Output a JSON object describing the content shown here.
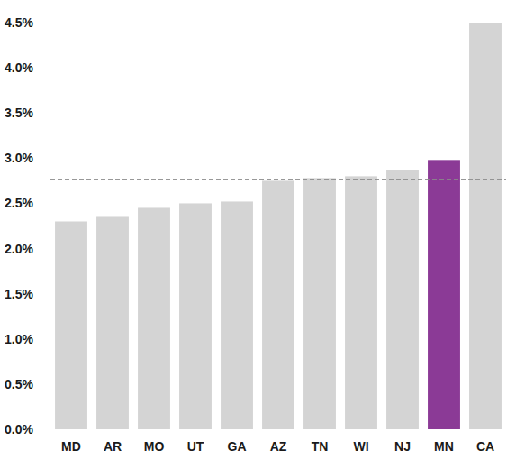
{
  "chart_data": {
    "type": "bar",
    "categories": [
      "MD",
      "AR",
      "MO",
      "UT",
      "GA",
      "AZ",
      "TN",
      "WI",
      "NJ",
      "MN",
      "CA"
    ],
    "values": [
      2.3,
      2.35,
      2.45,
      2.5,
      2.52,
      2.75,
      2.78,
      2.8,
      2.87,
      2.98,
      4.5
    ],
    "colors": [
      "#d4d4d4",
      "#d4d4d4",
      "#d4d4d4",
      "#d4d4d4",
      "#d4d4d4",
      "#d4d4d4",
      "#d4d4d4",
      "#d4d4d4",
      "#d4d4d4",
      "#8b3a96",
      "#d4d4d4"
    ],
    "ylim": [
      0,
      4.5
    ],
    "yticks": [
      {
        "value": 0,
        "label": "0.0%"
      },
      {
        "value": 0.5,
        "label": "0.5%"
      },
      {
        "value": 1,
        "label": "1.0%"
      },
      {
        "value": 1.5,
        "label": "1.5%"
      },
      {
        "value": 2,
        "label": "2.0%"
      },
      {
        "value": 2.5,
        "label": "2.5%"
      },
      {
        "value": 3,
        "label": "3.0%"
      },
      {
        "value": 3.5,
        "label": "3.5%"
      },
      {
        "value": 4,
        "label": "4.0%"
      },
      {
        "value": 4.5,
        "label": "4.5%"
      }
    ],
    "grid": false,
    "reference_line": 2.76
  }
}
